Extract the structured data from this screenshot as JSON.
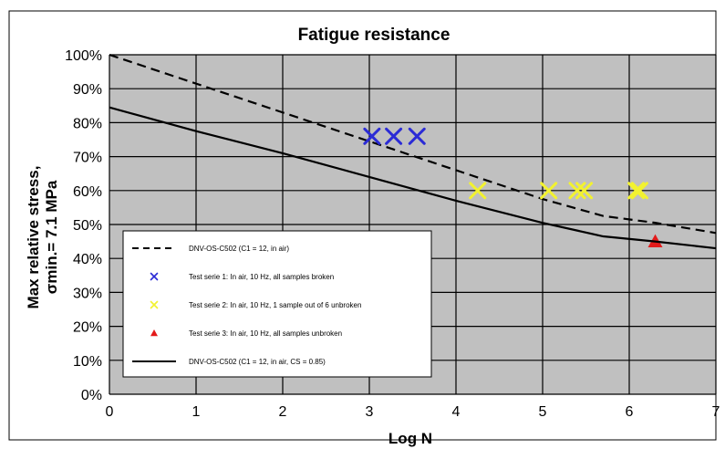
{
  "chart_data": {
    "type": "line",
    "title": "Fatigue resistance",
    "xlabel": "Log N",
    "ylabel_lines": [
      "Max relative stress,",
      "σmin.= 7.1 MPa"
    ],
    "xlim": [
      0,
      7
    ],
    "ylim": [
      0,
      100
    ],
    "x_ticks": [
      "0",
      "1",
      "2",
      "3",
      "4",
      "5",
      "6",
      "7"
    ],
    "y_ticks": [
      "0%",
      "10%",
      "20%",
      "30%",
      "40%",
      "50%",
      "60%",
      "70%",
      "80%",
      "90%",
      "100%"
    ],
    "grid": true,
    "plot_background": "#c0c0c0",
    "legend_position": "bottom-left",
    "series": [
      {
        "name": "DNV-OS-C502 (C1 = 12, in air)",
        "kind": "line",
        "style": "dashed",
        "color": "#000000",
        "x": [
          0,
          1,
          2,
          3,
          4,
          5,
          5.7,
          6.3,
          7
        ],
        "y": [
          100,
          91.5,
          83,
          74.5,
          66,
          57.5,
          52.5,
          50.5,
          47.5
        ]
      },
      {
        "name": "Test serie 1: In air, 10 Hz, all samples broken",
        "kind": "scatter",
        "marker": "x",
        "color": "#2b2bd6",
        "x": [
          3.03,
          3.28,
          3.55
        ],
        "y": [
          76,
          76,
          76
        ]
      },
      {
        "name": "Test serie 2: In air, 10 Hz, 1 sample out of 6 unbroken",
        "kind": "scatter",
        "marker": "x",
        "color": "#f2f230",
        "x": [
          4.25,
          5.07,
          5.4,
          5.48,
          6.08,
          6.12
        ],
        "y": [
          60,
          60,
          60,
          60,
          60,
          60
        ]
      },
      {
        "name": "Test serie 3: In air, 10 Hz, all samples unbroken",
        "kind": "scatter",
        "marker": "triangle",
        "color": "#e31a1a",
        "x": [
          6.3
        ],
        "y": [
          45
        ]
      },
      {
        "name": "DNV-OS-C502 (C1 = 12, in air, CS = 0.85)",
        "kind": "line",
        "style": "solid",
        "color": "#000000",
        "x": [
          0,
          1,
          2,
          3,
          4,
          5,
          5.7,
          6.3,
          7
        ],
        "y": [
          84.5,
          77.5,
          71,
          64,
          57,
          50.5,
          46.5,
          45,
          43
        ]
      }
    ]
  }
}
